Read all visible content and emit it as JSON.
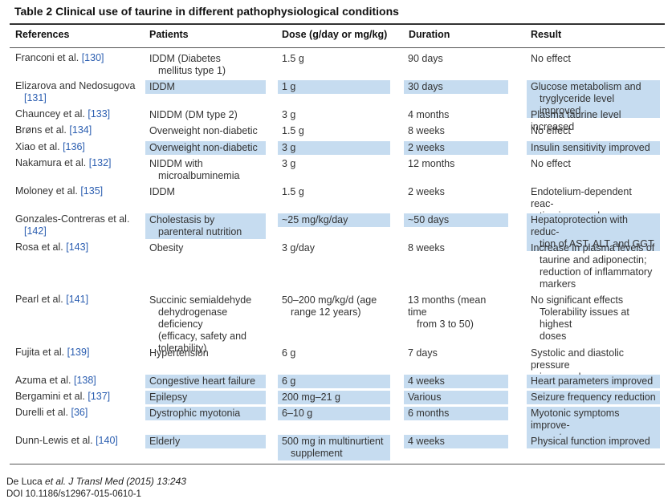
{
  "table": {
    "title": "Table 2  Clinical use of taurine in different pathophysiological conditions",
    "headers": [
      "References",
      "Patients",
      "Dose (g/day or mg/kg)",
      "Duration",
      "Result"
    ],
    "highlight_color": "#c6dcf0",
    "link_color": "#2a5db0",
    "rows": [
      {
        "ref_name": "Franconi et al.",
        "ref_cite": "[130]",
        "patients": "IDDM (Diabetes\nmellitus type 1)",
        "dose": "1.5 g",
        "duration": "90 days",
        "result": "No effect",
        "highlighted": false
      },
      {
        "ref_name": "Elizarova and Nedosugova",
        "ref_cite": "[131]",
        "patients": "IDDM",
        "dose": "1 g",
        "duration": "30 days",
        "result": "Glucose metabolism and\ntryglyceride level improved",
        "highlighted": true
      },
      {
        "ref_name": "Chauncey et al.",
        "ref_cite": "[133]",
        "patients": "NIDDM (DM type 2)",
        "dose": "3 g",
        "duration": "4 months",
        "result": "Plasma taurine level increased",
        "highlighted": false
      },
      {
        "ref_name": "Brøns et al.",
        "ref_cite": "[134]",
        "patients": "Overweight non-diabetic",
        "dose": "1.5 g",
        "duration": "8 weeks",
        "result": "No effect",
        "highlighted": false
      },
      {
        "ref_name": "Xiao et al.",
        "ref_cite": "[136]",
        "patients": "Overweight non-diabetic",
        "dose": "3 g",
        "duration": "2 weeks",
        "result": "Insulin sensitivity improved",
        "highlighted": true
      },
      {
        "ref_name": "Nakamura et al.",
        "ref_cite": "[132]",
        "patients": "NIDDM with\nmicroalbuminemia",
        "dose": "3 g",
        "duration": "12 months",
        "result": "No effect",
        "highlighted": false
      },
      {
        "ref_name": "Moloney et al.",
        "ref_cite": "[135]",
        "patients": "IDDM",
        "dose": "1.5 g",
        "duration": "2 weeks",
        "result": "Endotelium-dependent reac-\ntion improved",
        "highlighted": false
      },
      {
        "ref_name": "Gonzales-Contreras et al.",
        "ref_cite": "[142]",
        "patients": "Cholestasis by\nparenteral nutrition",
        "dose": "~25 mg/kg/day",
        "duration": "~50 days",
        "result": "Hepatoprotection with reduc-\ntion of AST, ALT and GGT",
        "highlighted": true
      },
      {
        "ref_name": "Rosa et al.",
        "ref_cite": "[143]",
        "patients": "Obesity",
        "dose": "3 g/day",
        "duration": "8 weeks",
        "result": "Increase in plasma levels of\ntaurine and adiponectin;\nreduction of inflammatory\nmarkers",
        "highlighted": false
      },
      {
        "ref_name": "Pearl et al.",
        "ref_cite": "[141]",
        "patients": "Succinic semialdehyde\ndehydrogenase deficiency\n(efficacy, safety and\ntolerability)",
        "dose": "50–200 mg/kg/d (age\nrange 12 years)",
        "duration": "13 months (mean time\nfrom 3 to 50)",
        "result": "No significant effects\nTolerability issues at highest\ndoses",
        "highlighted": false
      },
      {
        "ref_name": "Fujita et al.",
        "ref_cite": "[139]",
        "patients": "Hypertension",
        "dose": "6 g",
        "duration": "7 days",
        "result": "Systolic and diastolic pressure\nimproved",
        "highlighted": false
      },
      {
        "ref_name": "Azuma et al.",
        "ref_cite": "[138]",
        "patients": "Congestive heart failure",
        "dose": "6 g",
        "duration": "4 weeks",
        "result": "Heart parameters improved",
        "highlighted": true
      },
      {
        "ref_name": "Bergamini et al.",
        "ref_cite": "[137]",
        "patients": "Epilepsy",
        "dose": "200 mg–21 g",
        "duration": "Various",
        "result": "Seizure frequency reduction",
        "highlighted": true
      },
      {
        "ref_name": "Durelli et al.",
        "ref_cite": "[36]",
        "patients": "Dystrophic myotonia",
        "dose": "6–10 g",
        "duration": "6 months",
        "result": "Myotonic symptoms improve-\nment",
        "highlighted": true
      },
      {
        "ref_name": "Dunn-Lewis et al.",
        "ref_cite": "[140]",
        "patients": "Elderly",
        "dose": "500 mg in multinurtient\nsupplement",
        "duration": "4 weeks",
        "result": "Physical function improved",
        "highlighted": true
      }
    ]
  },
  "footer": {
    "authors": "De Luca",
    "etal": "et al.",
    "journal": "J Transl Med",
    "year_vol": "(2015) 13:243",
    "doi": "DOI 10.1186/s12967-015-0610-1"
  }
}
